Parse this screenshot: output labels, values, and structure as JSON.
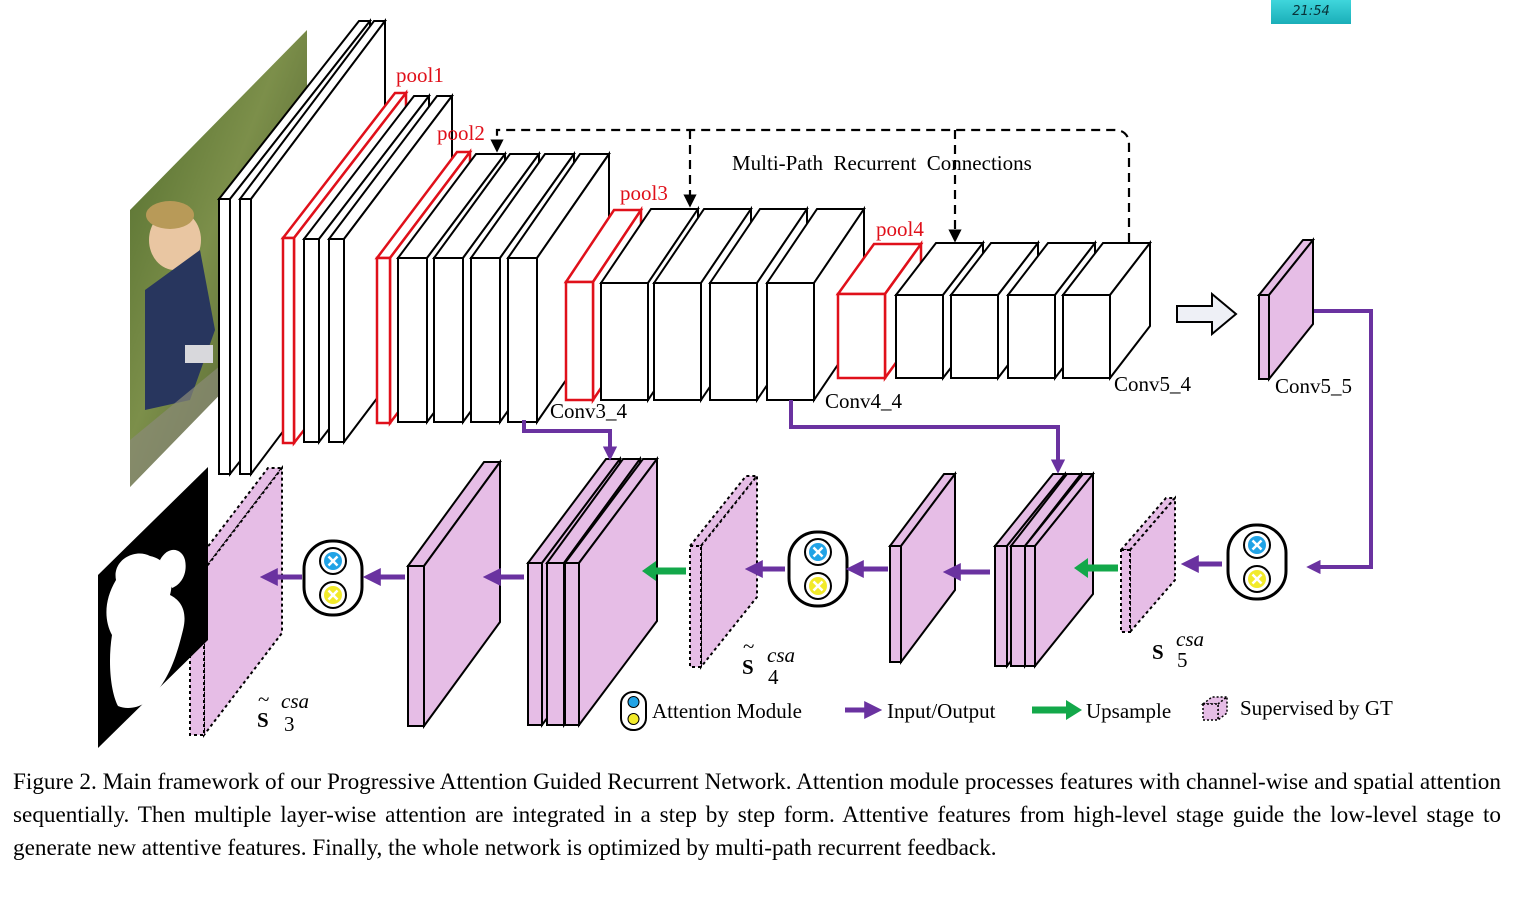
{
  "clock": {
    "time": "21:54"
  },
  "labels": {
    "pool1": "pool1",
    "pool2": "pool2",
    "pool3": "pool3",
    "pool4": "pool4",
    "conv3_4": "Conv3_4",
    "conv4_4": "Conv4_4",
    "conv5_4": "Conv5_4",
    "conv5_5": "Conv5_5",
    "recurrent": "Multi-Path  Recurrent  Connections"
  },
  "math": {
    "s3": {
      "base": "S",
      "sup": "csa",
      "sub": "3",
      "tilde": true
    },
    "s4": {
      "base": "S",
      "sup": "csa",
      "sub": "4",
      "tilde": true
    },
    "s5": {
      "base": "S",
      "sup": "csa",
      "sub": "5",
      "tilde": false
    }
  },
  "legend": {
    "attention": "Attention Module",
    "io": "Input/Output",
    "upsample": "Upsample",
    "supervised": "Supervised by GT"
  },
  "caption": "Figure 2. Main framework of our Progressive Attention Guided Recurrent Network. Attention module processes features with channel-wise and spatial attention sequentially. Then multiple layer-wise attention are integrated in a step by step form. Attentive features from high-level stage guide the low-level stage to generate new attentive features. Finally, the whole network is optimized by multi-path recurrent feedback.",
  "colors": {
    "feature": "#e6bde6",
    "pool": "#e0101a",
    "io_arrow": "#6a32a0",
    "upsample_arrow": "#13a84a",
    "attn_blue": "#21a3e6",
    "attn_yellow": "#f2ea2a"
  },
  "icons": {
    "input_image": "photo-child-in-forest",
    "saliency_output": "saliency-mask",
    "attention_module": "attention-module-icon",
    "multiply": "multiply-icon",
    "transfer": "hollow-arrow-icon"
  }
}
